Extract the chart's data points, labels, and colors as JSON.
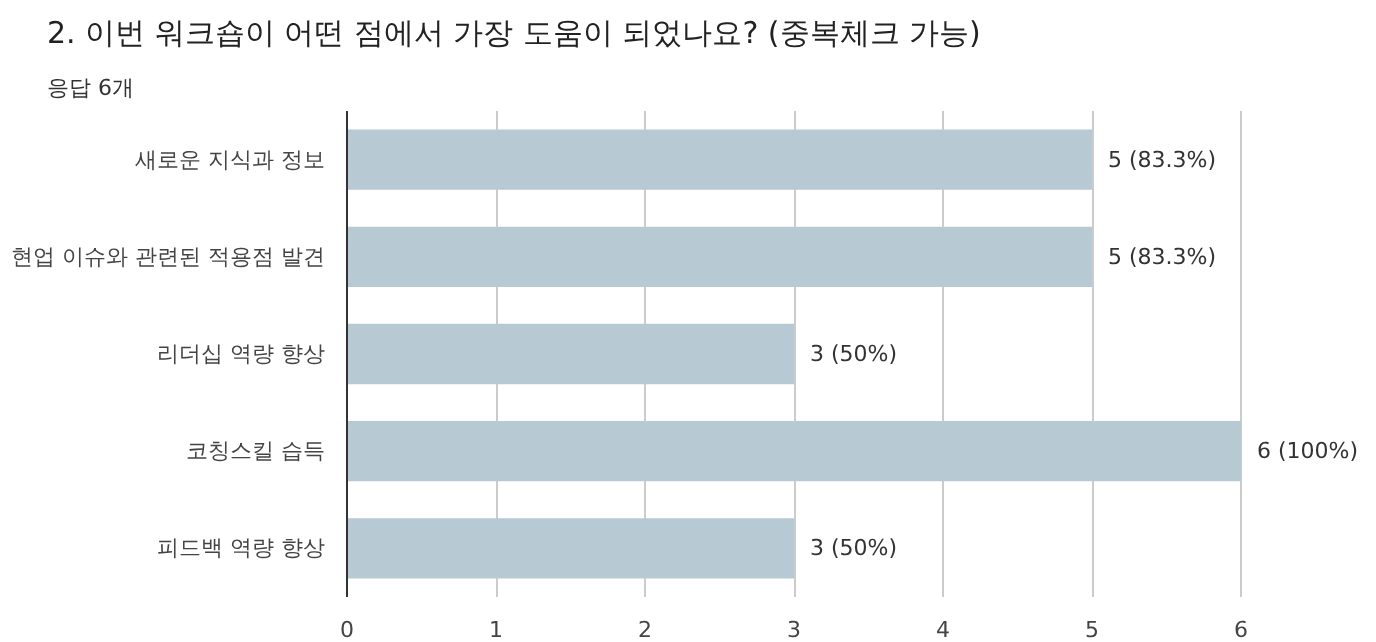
{
  "chart_data": {
    "type": "bar",
    "orientation": "horizontal",
    "title": "2. 이번 워크숍이 어떤 점에서 가장 도움이 되었나요? (중복체크 가능)",
    "subtitle": "응답 6개",
    "categories": [
      "새로운 지식과 정보",
      "현업 이슈와 관련된 적용점 발견",
      "리더십 역량 향상",
      "코칭스킬 습득",
      "피드백 역량 향상"
    ],
    "values": [
      5,
      5,
      3,
      6,
      3
    ],
    "color": "#b7c9d3",
    "value_labels": [
      "5 (83.3%)",
      "5 (83.3%)",
      "3 (50%)",
      "6 (100%)",
      "3 (50%)"
    ],
    "xlim": [
      0,
      6
    ],
    "xticks": [
      0,
      1,
      2,
      3,
      4,
      5,
      6
    ],
    "grid": "x"
  }
}
